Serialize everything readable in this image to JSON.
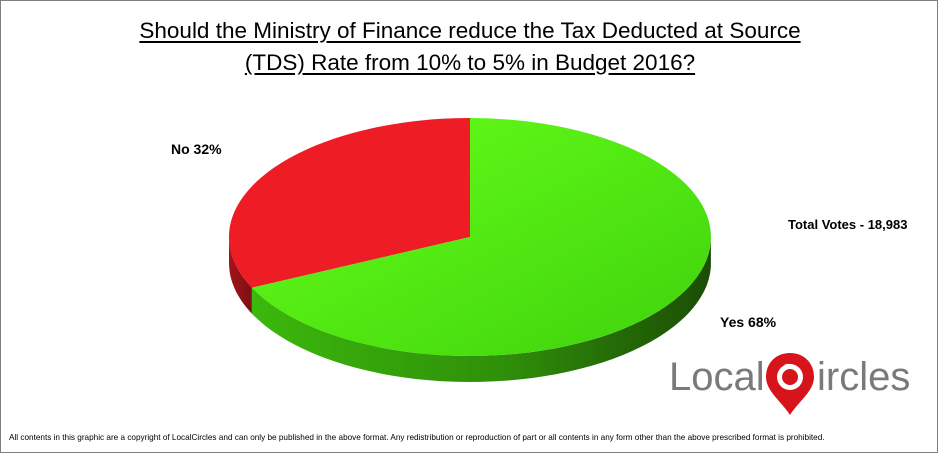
{
  "chart_data": {
    "type": "pie",
    "title_lines": [
      "Should the Ministry of Finance reduce the Tax Deducted at Source",
      "(TDS) Rate from 10% to 5% in Budget 2016?"
    ],
    "slices": [
      {
        "label": "No 32%",
        "category": "No",
        "value": 32,
        "color": "#ee1c24"
      },
      {
        "label": "Yes 68%",
        "category": "Yes",
        "value": 68,
        "color": "#55ee11"
      }
    ],
    "annotation": "Total Votes - 18,983"
  },
  "logo": {
    "text_left": "Local",
    "text_right": "ircles",
    "color_text": "#7a7a7a",
    "color_pin": "#d7141b"
  },
  "footer": "All contents in this graphic are a copyright of LocalCircles and can only be published in the above format. Any redistribution or reproduction of part or all contents in any form other than the above prescribed format is prohibited."
}
